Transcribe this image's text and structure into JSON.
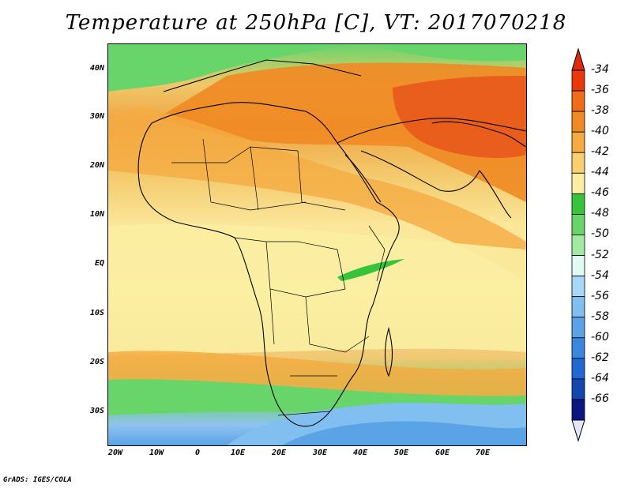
{
  "title": "Temperature at 250hPa [C], VT: 2017070218",
  "credit": "GrADS: IGES/COLA",
  "lat_labels": [
    "40N",
    "30N",
    "20N",
    "10N",
    "EQ",
    "10S",
    "20S",
    "30S"
  ],
  "lon_labels": [
    "20W",
    "10W",
    "0",
    "10E",
    "20E",
    "30E",
    "40E",
    "50E",
    "60E",
    "70E"
  ],
  "colorbar": {
    "labels": [
      "-34",
      "-36",
      "-38",
      "-40",
      "-42",
      "-44",
      "-46",
      "-48",
      "-50",
      "-52",
      "-54",
      "-56",
      "-58",
      "-60",
      "-62",
      "-64",
      "-66"
    ],
    "colors": [
      "#e8380c",
      "#f06c18",
      "#f08a24",
      "#f5ab42",
      "#f8d070",
      "#fbeea2",
      "#38c43a",
      "#68d56a",
      "#a2e9a2",
      "#e0fbf4",
      "#a8d8f8",
      "#80bff0",
      "#5aa3e6",
      "#3c86e0",
      "#2268d2",
      "#1446b0",
      "#0c1680"
    ],
    "top_triangle_color": "#e02a0a",
    "bottom_triangle_color": "#e4e6ff"
  }
}
